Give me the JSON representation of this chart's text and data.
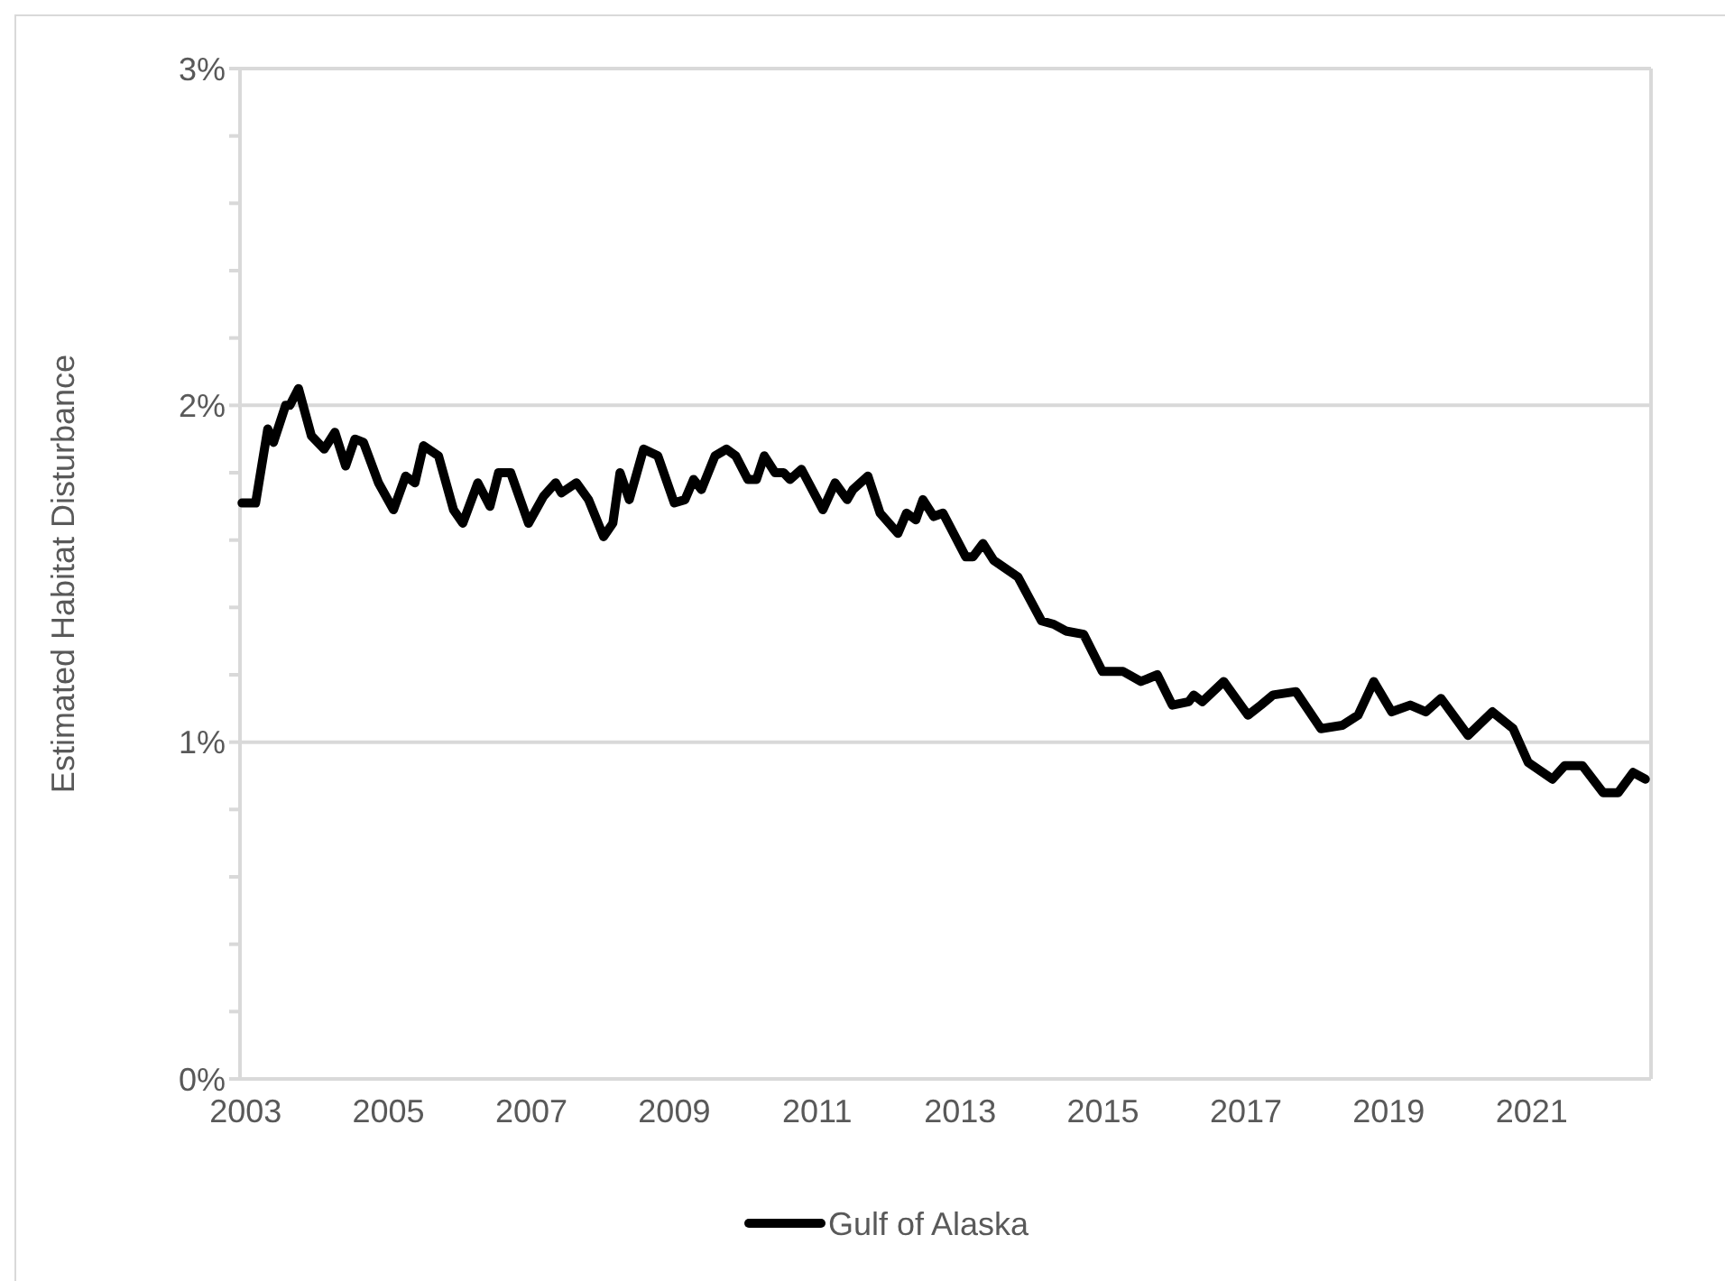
{
  "chart_data": {
    "type": "line",
    "ylabel": "Estimated Habitat Disturbance",
    "xlim": [
      2002.77,
      2022.67
    ],
    "xticks": [
      2003,
      2005,
      2007,
      2009,
      2011,
      2013,
      2015,
      2017,
      2019,
      2021
    ],
    "ylim": [
      0,
      3
    ],
    "yticks": [
      {
        "value": 0,
        "label": "0%"
      },
      {
        "value": 0.2,
        "label": null
      },
      {
        "value": 0.4,
        "label": null
      },
      {
        "value": 0.6,
        "label": null
      },
      {
        "value": 0.8,
        "label": null
      },
      {
        "value": 1,
        "label": "1%"
      },
      {
        "value": 1.2,
        "label": null
      },
      {
        "value": 1.4,
        "label": null
      },
      {
        "value": 1.6,
        "label": null
      },
      {
        "value": 1.8,
        "label": null
      },
      {
        "value": 2,
        "label": "2%"
      },
      {
        "value": 2.2,
        "label": null
      },
      {
        "value": 2.4,
        "label": null
      },
      {
        "value": 2.6,
        "label": null
      },
      {
        "value": 2.8,
        "label": null
      },
      {
        "value": 3,
        "label": "3%"
      }
    ],
    "grid": "y",
    "legend": "bottom",
    "marker": "none",
    "line_style": "solid",
    "series": [
      {
        "name": "Gulf of Alaska",
        "color": "#000000",
        "x": [
          2002.95,
          2003.14,
          2003.31,
          2003.39,
          2003.56,
          2003.62,
          2003.74,
          2003.92,
          2004.1,
          2004.25,
          2004.4,
          2004.53,
          2004.65,
          2004.86,
          2005.07,
          2005.24,
          2005.37,
          2005.49,
          2005.7,
          2005.91,
          2006.04,
          2006.25,
          2006.42,
          2006.54,
          2006.71,
          2006.96,
          2007.17,
          2007.34,
          2007.42,
          2007.63,
          2007.8,
          2008.01,
          2008.14,
          2008.24,
          2008.37,
          2008.57,
          2008.77,
          2009.0,
          2009.15,
          2009.27,
          2009.38,
          2009.57,
          2009.73,
          2009.86,
          2010.03,
          2010.15,
          2010.26,
          2010.41,
          2010.53,
          2010.62,
          2010.78,
          2011.08,
          2011.25,
          2011.42,
          2011.5,
          2011.71,
          2011.88,
          2012.13,
          2012.25,
          2012.38,
          2012.48,
          2012.63,
          2012.76,
          2013.08,
          2013.18,
          2013.32,
          2013.47,
          2013.81,
          2014.14,
          2014.31,
          2014.48,
          2014.73,
          2014.99,
          2015.28,
          2015.53,
          2015.76,
          2015.97,
          2016.2,
          2016.27,
          2016.39,
          2016.69,
          2017.03,
          2017.21,
          2017.38,
          2017.7,
          2018.05,
          2018.35,
          2018.57,
          2018.79,
          2019.04,
          2019.3,
          2019.52,
          2019.73,
          2020.11,
          2020.45,
          2020.74,
          2020.95,
          2021.29,
          2021.46,
          2021.71,
          2022.0,
          2022.21,
          2022.42,
          2022.59
        ],
        "values": [
          1.71,
          1.71,
          1.93,
          1.89,
          2.0,
          2.0,
          2.05,
          1.91,
          1.87,
          1.92,
          1.82,
          1.9,
          1.89,
          1.77,
          1.69,
          1.79,
          1.77,
          1.88,
          1.85,
          1.69,
          1.65,
          1.77,
          1.7,
          1.8,
          1.8,
          1.65,
          1.73,
          1.77,
          1.74,
          1.77,
          1.72,
          1.61,
          1.65,
          1.8,
          1.72,
          1.87,
          1.85,
          1.71,
          1.72,
          1.78,
          1.75,
          1.85,
          1.87,
          1.85,
          1.78,
          1.78,
          1.85,
          1.8,
          1.8,
          1.78,
          1.81,
          1.69,
          1.77,
          1.72,
          1.75,
          1.79,
          1.68,
          1.62,
          1.68,
          1.66,
          1.72,
          1.67,
          1.68,
          1.55,
          1.55,
          1.59,
          1.54,
          1.49,
          1.36,
          1.35,
          1.33,
          1.32,
          1.21,
          1.21,
          1.18,
          1.2,
          1.11,
          1.12,
          1.14,
          1.12,
          1.18,
          1.08,
          1.11,
          1.14,
          1.15,
          1.04,
          1.05,
          1.08,
          1.18,
          1.09,
          1.11,
          1.09,
          1.13,
          1.02,
          1.09,
          1.04,
          0.94,
          0.89,
          0.93,
          0.93,
          0.85,
          0.85,
          0.91,
          0.89
        ]
      }
    ]
  }
}
